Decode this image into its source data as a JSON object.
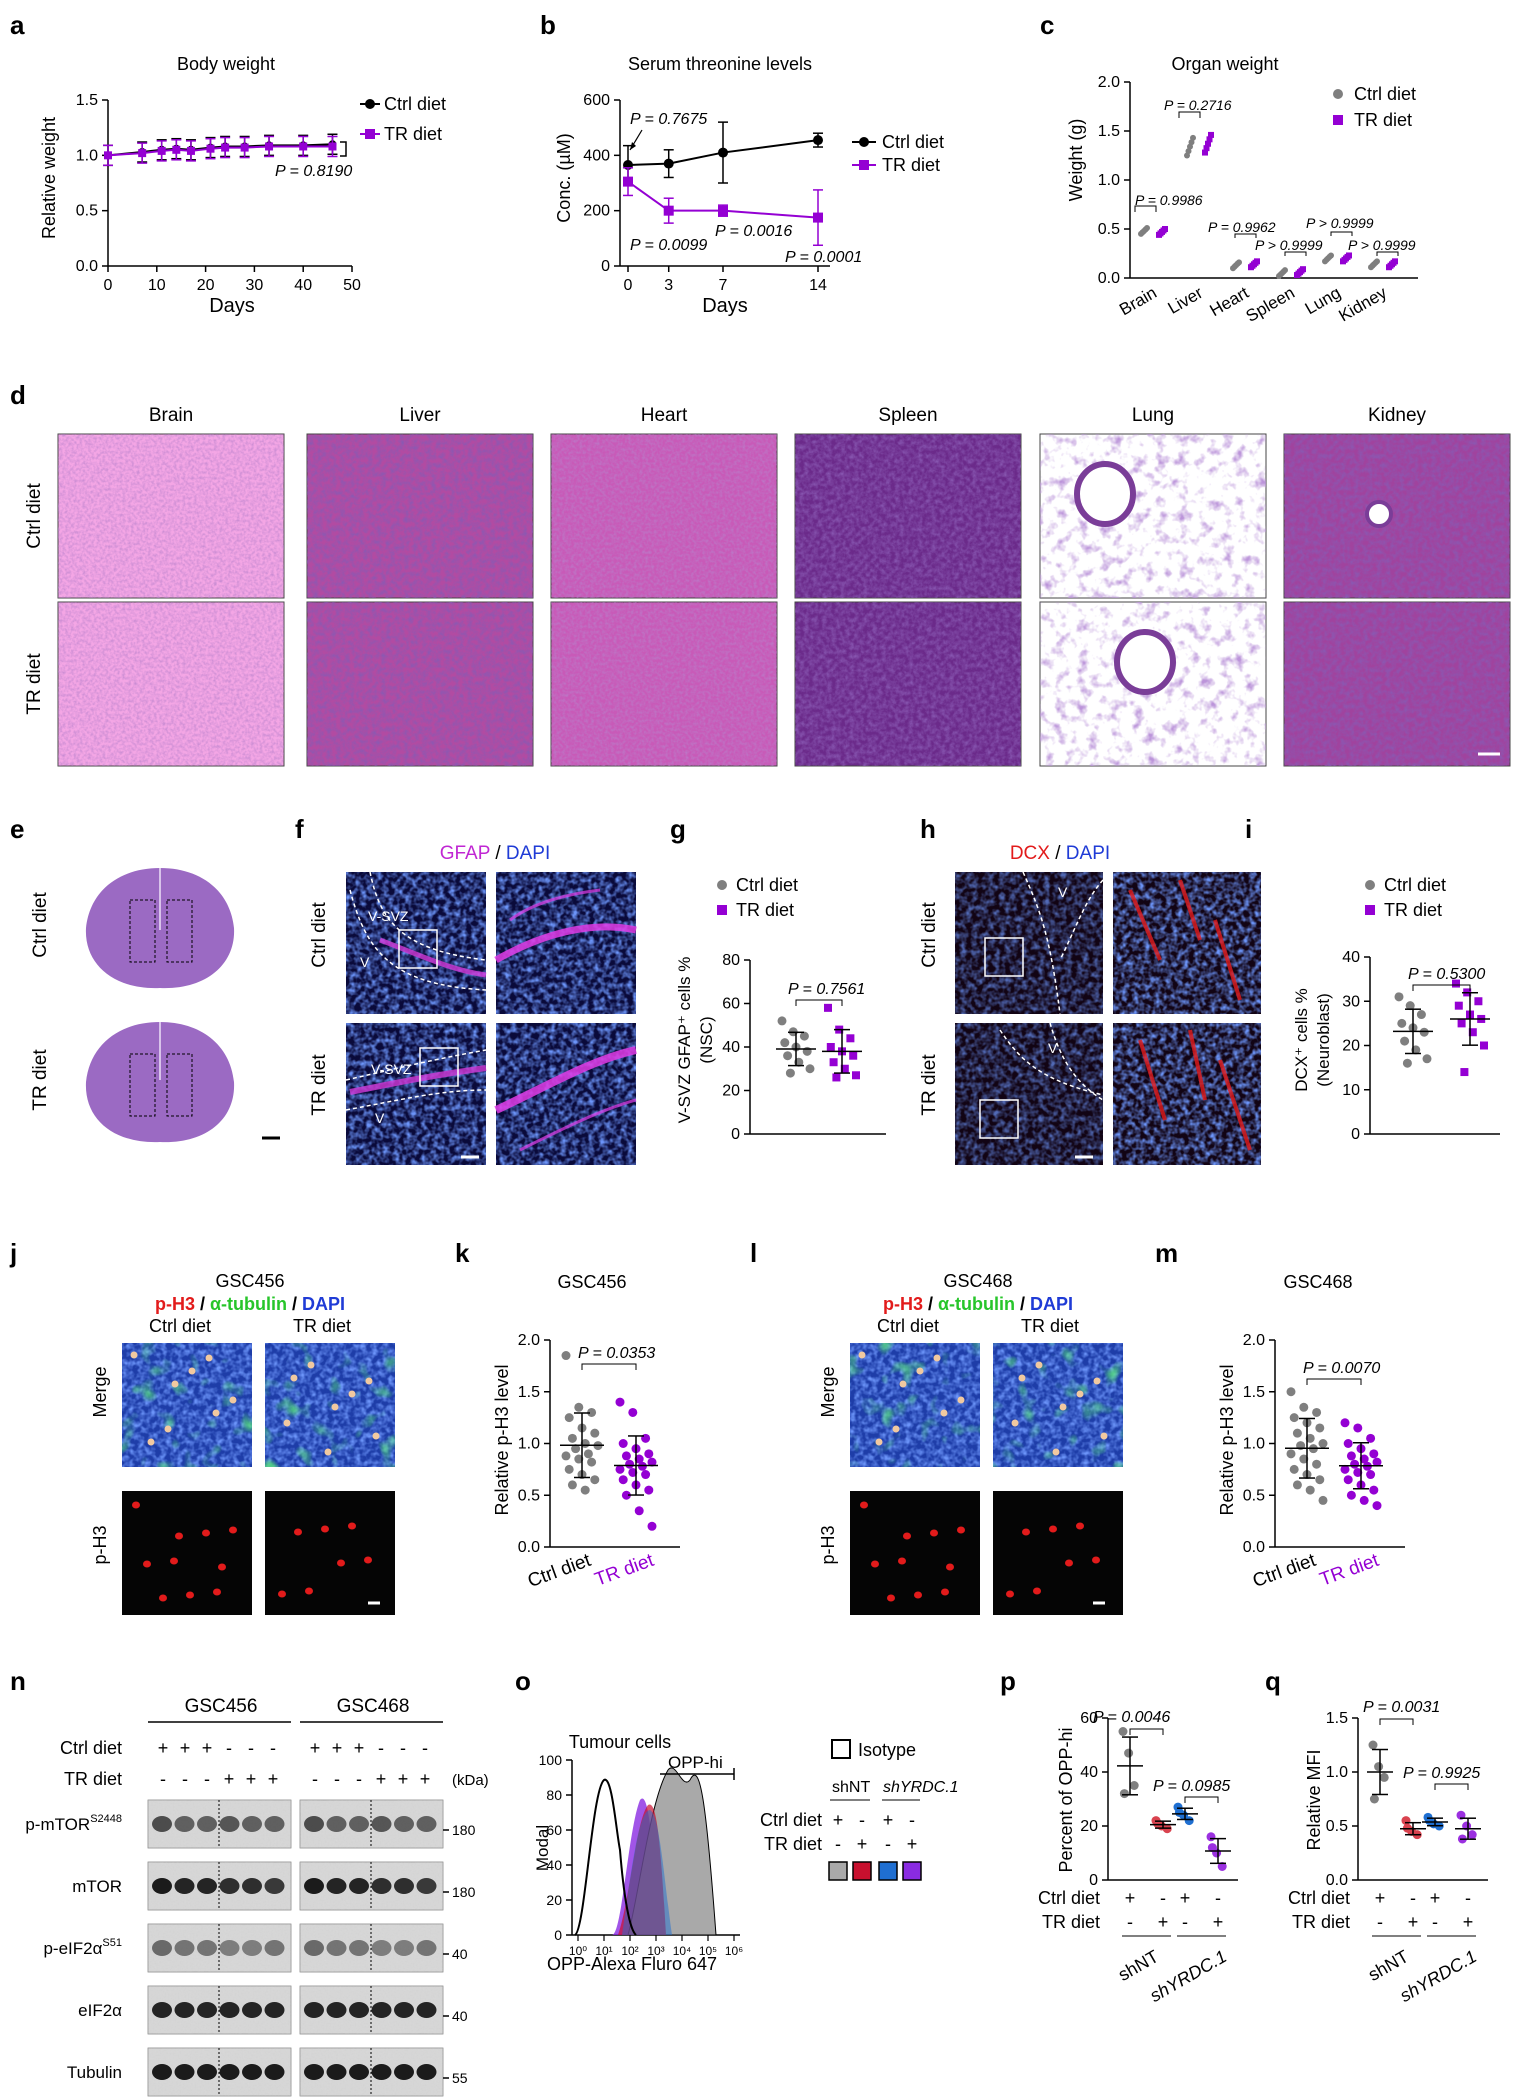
{
  "panel_letters": [
    "a",
    "b",
    "c",
    "d",
    "e",
    "f",
    "g",
    "h",
    "i",
    "j",
    "k",
    "l",
    "m",
    "n",
    "o",
    "p",
    "q"
  ],
  "colors": {
    "ctrl": "#000000",
    "tr": "#9400D3",
    "grey": "#7f7f7f",
    "he_pink": "#e58ad6",
    "he_purple": "#7a3d98",
    "red": "#e21b1b",
    "blue": "#1f5bd6",
    "green": "#27c52a"
  },
  "legend": {
    "ctrl": "Ctrl diet",
    "tr": "TR diet"
  },
  "panel_a": {
    "title": "Body weight",
    "xlabel": "Days",
    "ylabel": "Relative weight",
    "yticks": [
      "0.0",
      "0.5",
      "1.0",
      "1.5"
    ],
    "xticks": [
      "0",
      "10",
      "20",
      "30",
      "40",
      "50"
    ],
    "pvalue": "P = 0.8190"
  },
  "panel_b": {
    "title": "Serum threonine levels",
    "xlabel": "Days",
    "ylabel": "Conc. (µM)",
    "yticks": [
      "0",
      "200",
      "400",
      "600"
    ],
    "xticks": [
      "0",
      "3",
      "7",
      "14"
    ],
    "pvalues": [
      "P = 0.7675",
      "P = 0.0099",
      "P = 0.0016",
      "P = 0.0001"
    ]
  },
  "panel_c": {
    "title": "Organ weight",
    "ylabel": "Weight (g)",
    "yticks": [
      "0.0",
      "0.5",
      "1.0",
      "1.5",
      "2.0"
    ],
    "categories": [
      "Brain",
      "Liver",
      "Heart",
      "Spleen",
      "Lung",
      "Kidney"
    ],
    "pvalues": [
      "P = 0.9986",
      "P = 0.2716",
      "P = 0.9962",
      "P > 0.9999",
      "P > 0.9999",
      "P > 0.9999"
    ]
  },
  "panel_d": {
    "columns": [
      "Brain",
      "Liver",
      "Heart",
      "Spleen",
      "Lung",
      "Kidney"
    ],
    "rows": [
      "Ctrl diet",
      "TR diet"
    ]
  },
  "panel_e": {
    "rows": [
      "Ctrl diet",
      "TR diet"
    ]
  },
  "panel_f": {
    "stain_a": "GFAP",
    "sep": " / ",
    "stain_b": "DAPI",
    "rows": [
      "Ctrl diet",
      "TR diet"
    ],
    "labels": [
      "V-SVZ",
      "V",
      "V-SVZ",
      "V"
    ]
  },
  "panel_g": {
    "ylabel_1": "V-SVZ GFAP⁺ cells %",
    "ylabel_2": "(NSC)",
    "yticks": [
      "0",
      "20",
      "40",
      "60",
      "80"
    ],
    "pvalue": "P = 0.7561"
  },
  "panel_h": {
    "stain_a": "DCX",
    "sep": " / ",
    "stain_b": "DAPI",
    "rows": [
      "Ctrl diet",
      "TR diet"
    ],
    "labels": [
      "V",
      "V"
    ]
  },
  "panel_i": {
    "ylabel_1": "DCX⁺ cells %",
    "ylabel_2": "(Neuroblast)",
    "yticks": [
      "0",
      "10",
      "20",
      "30",
      "40"
    ],
    "pvalue": "P = 0.5300"
  },
  "panel_j": {
    "title": "GSC456",
    "stain_a": "p-H3",
    "stain_b": "α-tubulin",
    "stain_c": "DAPI",
    "sep": " / ",
    "cols": [
      "Ctrl diet",
      "TR diet"
    ],
    "rows": [
      "Merge",
      "p-H3"
    ]
  },
  "panel_k": {
    "title": "GSC456",
    "ylabel": "Relative p-H3 level",
    "yticks": [
      "0.0",
      "0.5",
      "1.0",
      "1.5",
      "2.0"
    ],
    "pvalue": "P = 0.0353",
    "xcats": [
      "Ctrl diet",
      "TR diet"
    ]
  },
  "panel_l": {
    "title": "GSC468",
    "stain_a": "p-H3",
    "stain_b": "α-tubulin",
    "stain_c": "DAPI",
    "sep": " / ",
    "cols": [
      "Ctrl diet",
      "TR diet"
    ],
    "rows": [
      "Merge",
      "p-H3"
    ]
  },
  "panel_m": {
    "title": "GSC468",
    "ylabel": "Relative p-H3 level",
    "yticks": [
      "0.0",
      "0.5",
      "1.0",
      "1.5",
      "2.0"
    ],
    "pvalue": "P = 0.0070",
    "xcats": [
      "Ctrl diet",
      "TR diet"
    ]
  },
  "panel_n": {
    "groups": [
      "GSC456",
      "GSC468"
    ],
    "row_ctrl": "Ctrl diet",
    "row_tr": "TR diet",
    "signs_ctrl": [
      "+",
      "+",
      "+",
      "-",
      "-",
      "-",
      "+",
      "+",
      "+",
      "-",
      "-",
      "-"
    ],
    "signs_tr": [
      "-",
      "-",
      "-",
      "+",
      "+",
      "+",
      "-",
      "-",
      "-",
      "+",
      "+",
      "+"
    ],
    "kda": "(kDa)",
    "blots": [
      {
        "name": "p-mTOR",
        "sup": "S2448",
        "marker": "180"
      },
      {
        "name": "mTOR",
        "sup": "",
        "marker": "180"
      },
      {
        "name": "p-eIF2α",
        "sup": "S51",
        "marker": "40"
      },
      {
        "name": "eIF2α",
        "sup": "",
        "marker": "40"
      },
      {
        "name": "Tubulin",
        "sup": "",
        "marker": "55"
      }
    ]
  },
  "panel_o": {
    "title": "Tumour cells",
    "gate": "OPP-hi",
    "ylabel": "Modal",
    "xlabel": "OPP-Alexa Fluro 647",
    "yticks": [
      "0",
      "20",
      "40",
      "60",
      "80",
      "100"
    ],
    "xticks": [
      "10⁰",
      "10¹",
      "10²",
      "10³",
      "10⁴",
      "10⁵",
      "10⁶"
    ],
    "isotype": "Isotype",
    "shNT": "shNT",
    "shYRDC": "shYRDC.1",
    "row_ctrl": "Ctrl diet",
    "row_tr": "TR diet",
    "signs_ctrl": [
      "+",
      "-",
      "+",
      "-"
    ],
    "signs_tr": [
      "-",
      "+",
      "-",
      "+"
    ],
    "swatches": [
      "#a9a9a9",
      "#c8102e",
      "#1f6fd1",
      "#8a2be2"
    ]
  },
  "panel_p": {
    "ylabel": "Percent of OPP-hi",
    "yticks": [
      "0",
      "20",
      "40",
      "60"
    ],
    "pvalues": [
      "P = 0.0046",
      "P = 0.0985"
    ],
    "row_ctrl": "Ctrl diet",
    "row_tr": "TR diet",
    "xgroups": [
      "shNT",
      "shYRDC.1"
    ]
  },
  "panel_q": {
    "ylabel": "Relative MFI",
    "yticks": [
      "0.0",
      "0.5",
      "1.0",
      "1.5"
    ],
    "pvalues": [
      "P = 0.0031",
      "P = 0.9925"
    ],
    "row_ctrl": "Ctrl diet",
    "row_tr": "TR diet",
    "xgroups": [
      "shNT",
      "shYRDC.1"
    ]
  },
  "chart_data": [
    {
      "panel": "a",
      "type": "line",
      "x": [
        0,
        7,
        11,
        14,
        17,
        21,
        24,
        28,
        33,
        40,
        46
      ],
      "xlim": [
        0,
        50
      ],
      "ylim": [
        0,
        1.5
      ],
      "series": [
        {
          "name": "Ctrl diet",
          "values": [
            1.0,
            1.03,
            1.05,
            1.06,
            1.05,
            1.07,
            1.08,
            1.08,
            1.09,
            1.09,
            1.1
          ]
        },
        {
          "name": "TR diet",
          "values": [
            1.0,
            1.02,
            1.04,
            1.05,
            1.04,
            1.06,
            1.07,
            1.07,
            1.08,
            1.08,
            1.08
          ]
        }
      ]
    },
    {
      "panel": "b",
      "type": "line",
      "x": [
        0,
        3,
        7,
        14
      ],
      "xlim": [
        0,
        14
      ],
      "ylim": [
        0,
        600
      ],
      "series": [
        {
          "name": "Ctrl diet",
          "values": [
            365,
            370,
            410,
            455
          ]
        },
        {
          "name": "TR diet",
          "values": [
            305,
            200,
            200,
            175
          ]
        }
      ]
    },
    {
      "panel": "c",
      "type": "scatter",
      "categories": [
        "Brain",
        "Liver",
        "Heart",
        "Spleen",
        "Lung",
        "Kidney"
      ],
      "ylim": [
        0,
        2
      ],
      "series": [
        {
          "name": "Ctrl diet",
          "values": [
            0.48,
            1.34,
            0.13,
            0.05,
            0.2,
            0.14
          ]
        },
        {
          "name": "TR diet",
          "values": [
            0.47,
            1.37,
            0.14,
            0.06,
            0.2,
            0.14
          ]
        }
      ]
    },
    {
      "panel": "g",
      "type": "scatter",
      "ylim": [
        0,
        80
      ],
      "series": [
        {
          "name": "Ctrl diet",
          "values": [
            52,
            47,
            45,
            42,
            40,
            38,
            36,
            33,
            30,
            28
          ]
        },
        {
          "name": "TR diet",
          "values": [
            58,
            48,
            44,
            40,
            38,
            36,
            33,
            30,
            27,
            26
          ]
        }
      ]
    },
    {
      "panel": "i",
      "type": "scatter",
      "ylim": [
        0,
        40
      ],
      "series": [
        {
          "name": "Ctrl diet",
          "values": [
            31,
            29,
            27,
            25,
            24,
            23,
            21,
            19,
            17,
            16
          ]
        },
        {
          "name": "TR diet",
          "values": [
            34,
            32,
            30,
            29,
            27,
            26,
            25,
            23,
            20,
            14
          ]
        }
      ]
    },
    {
      "panel": "k",
      "type": "scatter",
      "ylim": [
        0,
        2
      ],
      "series": [
        {
          "name": "Ctrl diet",
          "values": [
            1.85,
            1.35,
            1.3,
            1.25,
            1.15,
            1.1,
            1.05,
            1.0,
            0.98,
            0.95,
            0.9,
            0.88,
            0.85,
            0.82,
            0.75,
            0.7,
            0.65,
            0.6,
            0.55
          ]
        },
        {
          "name": "TR diet",
          "values": [
            1.4,
            1.3,
            1.05,
            1.0,
            0.95,
            0.9,
            0.88,
            0.85,
            0.82,
            0.8,
            0.78,
            0.75,
            0.72,
            0.7,
            0.65,
            0.6,
            0.55,
            0.5,
            0.35,
            0.2
          ]
        }
      ]
    },
    {
      "panel": "m",
      "type": "scatter",
      "ylim": [
        0,
        2
      ],
      "series": [
        {
          "name": "Ctrl diet",
          "values": [
            1.5,
            1.35,
            1.3,
            1.25,
            1.2,
            1.15,
            1.1,
            1.05,
            1.0,
            0.98,
            0.95,
            0.9,
            0.85,
            0.8,
            0.75,
            0.7,
            0.65,
            0.6,
            0.55,
            0.45
          ]
        },
        {
          "name": "TR diet",
          "values": [
            1.2,
            1.15,
            1.05,
            1.0,
            0.95,
            0.9,
            0.88,
            0.85,
            0.82,
            0.8,
            0.78,
            0.75,
            0.72,
            0.7,
            0.65,
            0.6,
            0.55,
            0.5,
            0.45,
            0.4
          ]
        }
      ]
    },
    {
      "panel": "p",
      "type": "scatter",
      "categories": [
        "Ctrl/shNT",
        "TR/shNT",
        "Ctrl/shYRDC.1",
        "TR/shYRDC.1"
      ],
      "ylim": [
        0,
        60
      ],
      "series": [
        {
          "name": "Percent of OPP-hi",
          "values": [
            [
              55,
              47,
              35,
              32
            ],
            [
              22,
              20,
              19,
              21
            ],
            [
              27,
              24,
              22,
              25
            ],
            [
              16,
              10,
              5,
              12
            ]
          ]
        }
      ]
    },
    {
      "panel": "q",
      "type": "scatter",
      "categories": [
        "Ctrl/shNT",
        "TR/shNT",
        "Ctrl/shYRDC.1",
        "TR/shYRDC.1"
      ],
      "ylim": [
        0,
        1.5
      ],
      "series": [
        {
          "name": "Relative MFI",
          "values": [
            [
              1.25,
              1.05,
              0.95,
              0.75
            ],
            [
              0.55,
              0.45,
              0.42,
              0.48
            ],
            [
              0.58,
              0.52,
              0.5,
              0.55
            ],
            [
              0.6,
              0.5,
              0.42,
              0.38
            ]
          ]
        }
      ]
    }
  ]
}
